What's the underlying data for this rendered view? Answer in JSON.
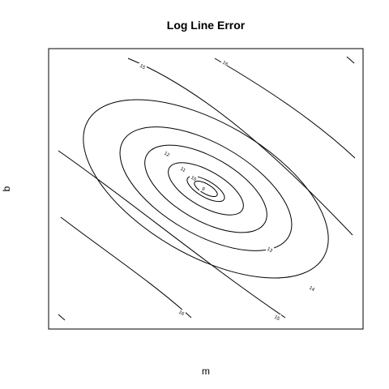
{
  "chart_data": {
    "type": "contour",
    "title": "Log Line Error",
    "xlabel": "m",
    "ylabel": "b",
    "grid": false,
    "legend": "none",
    "axes_ticks_shown": false,
    "contour_levels": [
      {
        "level": 9,
        "label": "9"
      },
      {
        "level": 10,
        "label": "10"
      },
      {
        "level": 11,
        "label": "11"
      },
      {
        "level": 12,
        "label": "12"
      },
      {
        "level": 13,
        "label": "13"
      },
      {
        "level": 14,
        "label": "14"
      },
      {
        "level": 15,
        "label": "15"
      },
      {
        "level": 16,
        "label": "16"
      }
    ],
    "colors": {
      "line": "#000000",
      "background": "#ffffff"
    }
  }
}
